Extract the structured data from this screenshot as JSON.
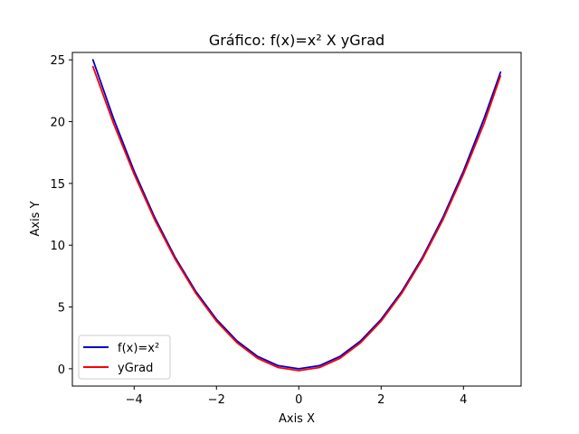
{
  "chart_data": {
    "type": "line",
    "title": "Gráfico: f(x)=x²  X  yGrad",
    "xlabel": "Axis X",
    "ylabel": "Axis Y",
    "xlim": [
      -5.5,
      5.4
    ],
    "ylim": [
      -1.4,
      25.6
    ],
    "xticks": [
      -4,
      -2,
      0,
      2,
      4
    ],
    "xtick_labels": [
      "−4",
      "−2",
      "0",
      "2",
      "4"
    ],
    "yticks": [
      0,
      5,
      10,
      15,
      20,
      25
    ],
    "ytick_labels": [
      "0",
      "5",
      "10",
      "15",
      "20",
      "25"
    ],
    "grid": false,
    "legend": {
      "position": "bottom-left"
    },
    "series": [
      {
        "name": "f(x)=x²",
        "color": "#0000cc",
        "x": [
          -5.0,
          -4.5,
          -4.0,
          -3.5,
          -3.0,
          -2.5,
          -2.0,
          -1.5,
          -1.0,
          -0.5,
          0.0,
          0.5,
          1.0,
          1.5,
          2.0,
          2.5,
          3.0,
          3.5,
          4.0,
          4.5,
          4.9
        ],
        "y": [
          25.0,
          20.25,
          16.0,
          12.25,
          9.0,
          6.25,
          4.0,
          2.25,
          1.0,
          0.25,
          0.0,
          0.25,
          1.0,
          2.25,
          4.0,
          6.25,
          9.0,
          12.25,
          16.0,
          20.25,
          24.0
        ]
      },
      {
        "name": "yGrad",
        "color": "#ff0000",
        "x": [
          -5.0,
          -4.5,
          -4.0,
          -3.5,
          -3.0,
          -2.5,
          -2.0,
          -1.5,
          -1.0,
          -0.5,
          0.0,
          0.5,
          1.0,
          1.5,
          2.0,
          2.5,
          3.0,
          3.5,
          4.0,
          4.5,
          4.9
        ],
        "y": [
          24.45,
          19.85,
          15.75,
          12.05,
          8.85,
          6.1,
          3.85,
          2.1,
          0.85,
          0.1,
          -0.15,
          0.1,
          0.85,
          2.1,
          3.85,
          6.1,
          8.85,
          12.05,
          15.75,
          19.85,
          23.7
        ]
      }
    ]
  }
}
